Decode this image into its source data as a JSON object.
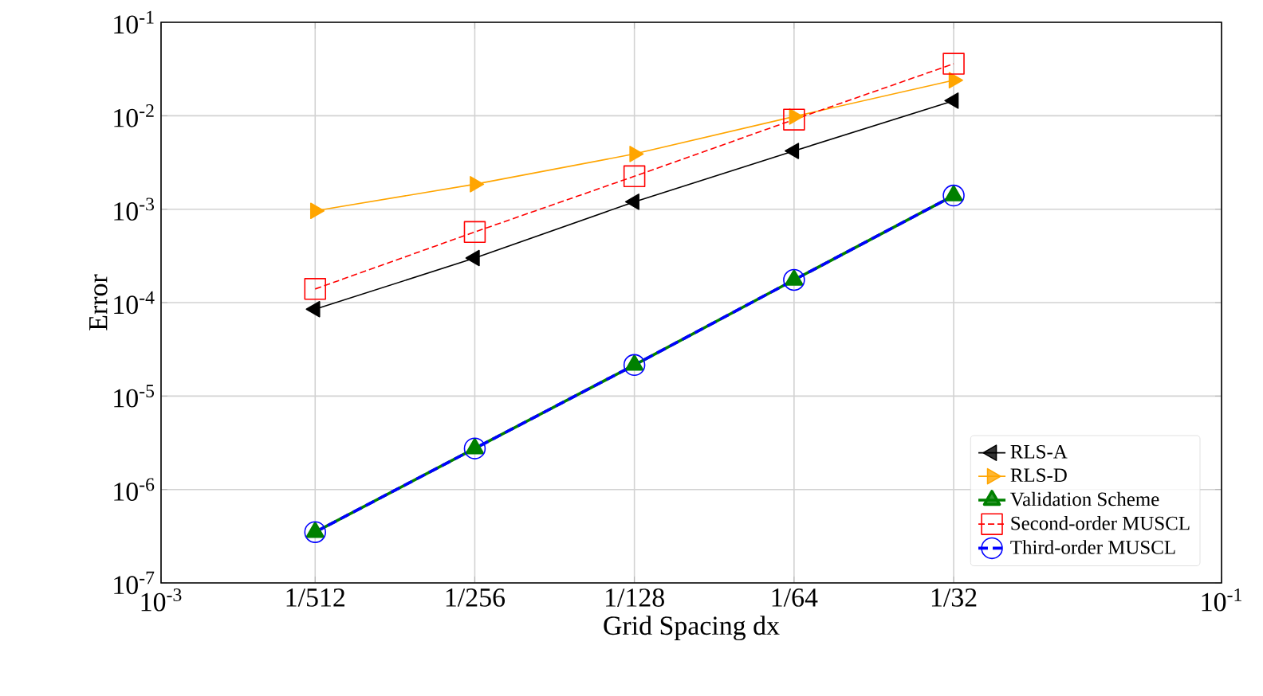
{
  "chart_data": {
    "type": "line",
    "xlabel": "Grid Spacing dx",
    "ylabel": "Error",
    "x": [
      0.001953125,
      0.00390625,
      0.0078125,
      0.015625,
      0.03125
    ],
    "series": [
      {
        "name": "RLS-A",
        "color": "#000000",
        "marker": "triangle-left",
        "line_style": "solid",
        "values": [
          8.5e-05,
          0.0003,
          0.0012,
          0.0042,
          0.0145
        ]
      },
      {
        "name": "RLS-D",
        "color": "#ffa500",
        "marker": "triangle-right",
        "line_style": "solid",
        "values": [
          0.00096,
          0.00185,
          0.0039,
          0.0098,
          0.024
        ]
      },
      {
        "name": "Validation Scheme",
        "color": "#008000",
        "marker": "triangle",
        "line_style": "solid",
        "values": [
          3.5e-07,
          2.75e-06,
          2.15e-05,
          0.000175,
          0.0014
        ]
      },
      {
        "name": "Second-order MUSCL",
        "color": "#ff0000",
        "marker": "square",
        "line_style": "dashed",
        "values": [
          0.00014,
          0.00057,
          0.00225,
          0.0091,
          0.036
        ]
      },
      {
        "name": "Third-order MUSCL",
        "color": "#0000ff",
        "marker": "circle",
        "line_style": "dashed",
        "values": [
          3.5e-07,
          2.75e-06,
          2.15e-05,
          0.000175,
          0.0014
        ]
      }
    ],
    "log": "xy",
    "xlim": [
      0.001,
      0.1
    ],
    "ylim": [
      1e-07,
      0.1
    ],
    "xticks": [
      {
        "value": 0.001,
        "label": "10$^{-3}$"
      },
      {
        "value": 0.001953125,
        "label": "1/512"
      },
      {
        "value": 0.00390625,
        "label": "1/256"
      },
      {
        "value": 0.0078125,
        "label": "1/128"
      },
      {
        "value": 0.015625,
        "label": "1/64"
      },
      {
        "value": 0.03125,
        "label": "1/32"
      },
      {
        "value": 0.1,
        "label": "10$^{-1}$"
      }
    ],
    "yticks": [
      {
        "value": 1e-07,
        "label": "10$^{-7}$"
      },
      {
        "value": 1e-06,
        "label": "10$^{-6}$"
      },
      {
        "value": 1e-05,
        "label": "10$^{-5}$"
      },
      {
        "value": 0.0001,
        "label": "10$^{-4}$"
      },
      {
        "value": 0.001,
        "label": "10$^{-3}$"
      },
      {
        "value": 0.01,
        "label": "10$^{-2}$"
      },
      {
        "value": 0.1,
        "label": "10$^{-1}$"
      }
    ],
    "grid": true,
    "legend": "bottom right"
  }
}
